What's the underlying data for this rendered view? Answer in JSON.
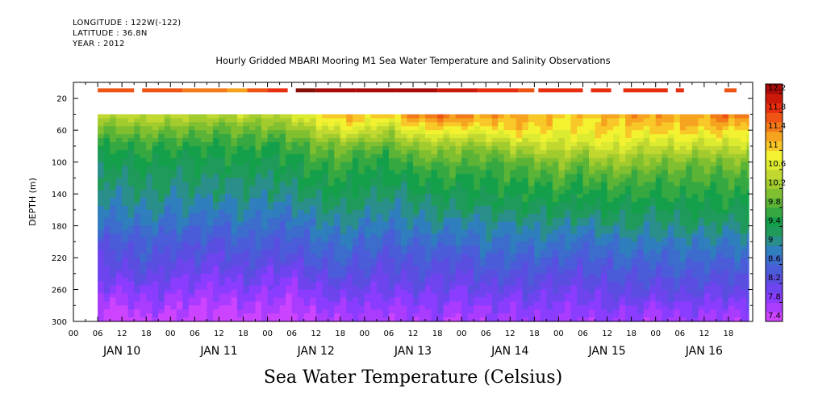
{
  "header": {
    "longitude": "LONGITUDE : 122W(-122)",
    "latitude": "LATITUDE : 36.8N",
    "year": "YEAR : 2012"
  },
  "chart_data": {
    "type": "heatmap",
    "title": "Hourly Gridded MBARI Mooring M1 Sea Water Temperature and Salinity Observations",
    "xlabel": "",
    "ylabel": "DEPTH (m)",
    "colorbar_title": "Sea Water Temperature (Celsius)",
    "x_hour_ticks": [
      "00",
      "06",
      "12",
      "18",
      "00",
      "06",
      "12",
      "18",
      "00",
      "06",
      "12",
      "18",
      "00",
      "06",
      "12",
      "18",
      "00",
      "06",
      "12",
      "18",
      "00",
      "06",
      "12",
      "18",
      "00",
      "06",
      "12",
      "18"
    ],
    "x_day_labels": [
      "JAN 10",
      "JAN 11",
      "JAN 12",
      "JAN 13",
      "JAN 14",
      "JAN 15",
      "JAN 16"
    ],
    "xlim_hours": [
      0,
      168
    ],
    "data_xlim_hours": [
      6,
      167
    ],
    "y_ticks": [
      20,
      60,
      100,
      140,
      180,
      220,
      260,
      300
    ],
    "ylim": [
      0,
      300
    ],
    "y_inverted": true,
    "depths": [
      10,
      40,
      60,
      80,
      100,
      120,
      140,
      160,
      180,
      200,
      220,
      240,
      260,
      280,
      300
    ],
    "surface_depth": 10,
    "data_gap_depth_range": [
      10,
      40
    ],
    "colorbar_levels": [
      7.4,
      7.6,
      7.8,
      8.0,
      8.2,
      8.4,
      8.6,
      8.8,
      9.0,
      9.2,
      9.4,
      9.6,
      9.8,
      10.0,
      10.2,
      10.4,
      10.6,
      10.8,
      11.0,
      11.2,
      11.4,
      11.6,
      11.8,
      12.0,
      12.2,
      12.4
    ],
    "colorbar_tick_labels": [
      "7.4",
      "7.8",
      "8.2",
      "8.6",
      "9",
      "9.4",
      "9.8",
      "10.2",
      "10.6",
      "11",
      "11.4",
      "11.8",
      "12.2"
    ],
    "colorbar_colors": [
      "#cc44ff",
      "#aa3cff",
      "#8a3cff",
      "#6e44ee",
      "#5a4ee0",
      "#4a5cd8",
      "#3c6ccc",
      "#2f7ebd",
      "#2a8e8a",
      "#1f9a5a",
      "#14a04a",
      "#36a842",
      "#5cb436",
      "#80c030",
      "#a2cc2e",
      "#c0d830",
      "#dcea30",
      "#f2f230",
      "#f8c828",
      "#f6a420",
      "#f27a18",
      "#ee5414",
      "#e82e10",
      "#cc1a0a",
      "#a80c08",
      "#841008"
    ],
    "surface_series": [
      {
        "x0": 6,
        "x1": 15,
        "value": 11.6
      },
      {
        "x0": 17,
        "x1": 27,
        "value": 11.6
      },
      {
        "x0": 27,
        "x1": 38,
        "value": 11.5
      },
      {
        "x0": 38,
        "x1": 43,
        "value": 11.3
      },
      {
        "x0": 43,
        "x1": 48,
        "value": 11.6
      },
      {
        "x0": 48,
        "x1": 53,
        "value": 11.9
      },
      {
        "x0": 55,
        "x1": 60,
        "value": 12.4
      },
      {
        "x0": 60,
        "x1": 70,
        "value": 12.3
      },
      {
        "x0": 70,
        "x1": 80,
        "value": 12.3
      },
      {
        "x0": 80,
        "x1": 90,
        "value": 12.2
      },
      {
        "x0": 90,
        "x1": 100,
        "value": 12.1
      },
      {
        "x0": 100,
        "x1": 110,
        "value": 11.9
      },
      {
        "x0": 110,
        "x1": 114,
        "value": 11.7
      },
      {
        "x0": 115,
        "x1": 126,
        "value": 11.9
      },
      {
        "x0": 128,
        "x1": 133,
        "value": 11.9
      },
      {
        "x0": 136,
        "x1": 147,
        "value": 11.9
      },
      {
        "x0": 149,
        "x1": 151,
        "value": 11.8
      },
      {
        "x0": 161,
        "x1": 164,
        "value": 11.6
      }
    ],
    "profiles": [
      {
        "hour": 6,
        "values": [
          null,
          10.5,
          10.0,
          9.6,
          9.4,
          9.2,
          9.1,
          8.9,
          8.7,
          8.5,
          8.3,
          8.1,
          7.9,
          7.6,
          7.5
        ]
      },
      {
        "hour": 12,
        "values": [
          null,
          10.5,
          10.0,
          9.6,
          9.4,
          9.2,
          9.1,
          8.9,
          8.7,
          8.5,
          8.3,
          8.1,
          7.9,
          7.6,
          7.4
        ]
      },
      {
        "hour": 18,
        "values": [
          null,
          10.6,
          10.1,
          9.7,
          9.5,
          9.3,
          9.2,
          9.0,
          8.8,
          8.6,
          8.5,
          8.3,
          8.0,
          7.8,
          7.6
        ]
      },
      {
        "hour": 24,
        "values": [
          null,
          10.5,
          10.0,
          9.6,
          9.4,
          9.2,
          9.1,
          8.9,
          8.7,
          8.5,
          8.3,
          8.1,
          7.9,
          7.7,
          7.5
        ]
      },
      {
        "hour": 30,
        "values": [
          null,
          10.5,
          10.0,
          9.6,
          9.4,
          9.3,
          9.1,
          8.9,
          8.7,
          8.5,
          8.3,
          8.1,
          7.9,
          7.6,
          7.5
        ]
      },
      {
        "hour": 36,
        "values": [
          null,
          10.4,
          9.9,
          9.6,
          9.4,
          9.2,
          9.1,
          8.9,
          8.6,
          8.4,
          8.2,
          8.0,
          7.8,
          7.6,
          7.4
        ]
      },
      {
        "hour": 42,
        "values": [
          null,
          10.5,
          10.0,
          9.7,
          9.5,
          9.3,
          9.1,
          9.0,
          8.8,
          8.6,
          8.4,
          8.2,
          8.0,
          7.7,
          7.5
        ]
      },
      {
        "hour": 48,
        "values": [
          null,
          10.4,
          10.0,
          9.6,
          9.4,
          9.2,
          9.1,
          8.9,
          8.7,
          8.5,
          8.3,
          8.1,
          7.9,
          7.7,
          7.5
        ]
      },
      {
        "hour": 54,
        "values": [
          null,
          10.6,
          10.1,
          9.7,
          9.5,
          9.3,
          9.1,
          8.9,
          8.7,
          8.5,
          8.3,
          8.0,
          7.8,
          7.6,
          7.4
        ]
      },
      {
        "hour": 60,
        "values": [
          null,
          11.0,
          10.4,
          10.0,
          9.7,
          9.5,
          9.3,
          9.1,
          8.9,
          8.7,
          8.5,
          8.3,
          8.0,
          7.8,
          7.6
        ]
      },
      {
        "hour": 66,
        "values": [
          null,
          11.3,
          10.7,
          10.1,
          9.8,
          9.6,
          9.4,
          9.2,
          9.0,
          8.8,
          8.6,
          8.4,
          8.1,
          7.9,
          7.7
        ]
      },
      {
        "hour": 72,
        "values": [
          null,
          11.2,
          10.6,
          10.0,
          9.6,
          9.4,
          9.3,
          9.1,
          8.9,
          8.7,
          8.5,
          8.3,
          8.1,
          7.9,
          7.7
        ]
      },
      {
        "hour": 78,
        "values": [
          null,
          11.1,
          10.4,
          9.9,
          9.6,
          9.4,
          9.2,
          9.0,
          8.8,
          8.6,
          8.4,
          8.2,
          8.0,
          7.8,
          7.6
        ]
      },
      {
        "hour": 84,
        "values": [
          null,
          11.5,
          10.8,
          10.2,
          9.8,
          9.5,
          9.3,
          9.1,
          8.9,
          8.7,
          8.5,
          8.3,
          8.1,
          7.9,
          7.6
        ]
      },
      {
        "hour": 90,
        "values": [
          null,
          11.6,
          10.9,
          10.3,
          9.9,
          9.6,
          9.4,
          9.2,
          9.0,
          8.7,
          8.5,
          8.3,
          8.1,
          7.9,
          7.7
        ]
      },
      {
        "hour": 96,
        "values": [
          null,
          11.6,
          10.9,
          10.2,
          9.9,
          9.6,
          9.4,
          9.2,
          8.9,
          8.7,
          8.4,
          8.2,
          8.0,
          7.8,
          7.6
        ]
      },
      {
        "hour": 102,
        "values": [
          null,
          11.3,
          10.8,
          10.2,
          9.8,
          9.6,
          9.4,
          9.2,
          9.0,
          8.8,
          8.6,
          8.4,
          8.2,
          7.9,
          7.7
        ]
      },
      {
        "hour": 108,
        "values": [
          null,
          11.3,
          11.1,
          10.4,
          9.9,
          9.7,
          9.5,
          9.3,
          9.0,
          8.8,
          8.6,
          8.4,
          8.1,
          7.9,
          7.7
        ]
      },
      {
        "hour": 114,
        "values": [
          null,
          11.2,
          11.0,
          10.5,
          10.0,
          9.7,
          9.5,
          9.3,
          9.1,
          8.8,
          8.6,
          8.4,
          8.2,
          8.0,
          7.8
        ]
      },
      {
        "hour": 120,
        "values": [
          null,
          11.1,
          10.9,
          10.6,
          10.2,
          9.8,
          9.6,
          9.3,
          9.1,
          8.8,
          8.6,
          8.3,
          8.1,
          7.9,
          7.7
        ]
      },
      {
        "hour": 126,
        "values": [
          null,
          11.1,
          10.9,
          10.5,
          10.0,
          9.7,
          9.5,
          9.3,
          9.0,
          8.7,
          8.5,
          8.3,
          8.1,
          7.9,
          7.7
        ]
      },
      {
        "hour": 132,
        "values": [
          null,
          11.2,
          11.0,
          10.8,
          10.3,
          9.9,
          9.6,
          9.4,
          9.1,
          8.8,
          8.6,
          8.4,
          8.2,
          8.0,
          7.8
        ]
      },
      {
        "hour": 138,
        "values": [
          null,
          11.3,
          11.0,
          10.6,
          10.2,
          9.8,
          9.6,
          9.4,
          9.2,
          8.9,
          8.7,
          8.5,
          8.3,
          8.0,
          7.8
        ]
      },
      {
        "hour": 144,
        "values": [
          null,
          11.4,
          11.0,
          10.5,
          10.1,
          9.8,
          9.6,
          9.3,
          9.1,
          8.9,
          8.6,
          8.4,
          8.2,
          7.9,
          7.6
        ]
      },
      {
        "hour": 150,
        "values": [
          null,
          11.3,
          11.1,
          10.6,
          10.1,
          9.8,
          9.6,
          9.4,
          9.2,
          8.9,
          8.7,
          8.5,
          8.3,
          8.0,
          7.8
        ]
      },
      {
        "hour": 156,
        "values": [
          null,
          11.4,
          11.0,
          10.5,
          10.0,
          9.8,
          9.6,
          9.4,
          9.2,
          8.9,
          8.7,
          8.5,
          8.2,
          8.0,
          7.7
        ]
      },
      {
        "hour": 162,
        "values": [
          null,
          11.6,
          11.1,
          10.6,
          10.1,
          9.8,
          9.6,
          9.4,
          9.1,
          8.9,
          8.6,
          8.4,
          8.2,
          7.9,
          7.6
        ]
      },
      {
        "hour": 167,
        "values": [
          null,
          11.4,
          10.9,
          10.5,
          10.1,
          9.8,
          9.6,
          9.4,
          9.2,
          8.9,
          8.7,
          8.5,
          8.3,
          8.0,
          7.7
        ]
      }
    ]
  }
}
